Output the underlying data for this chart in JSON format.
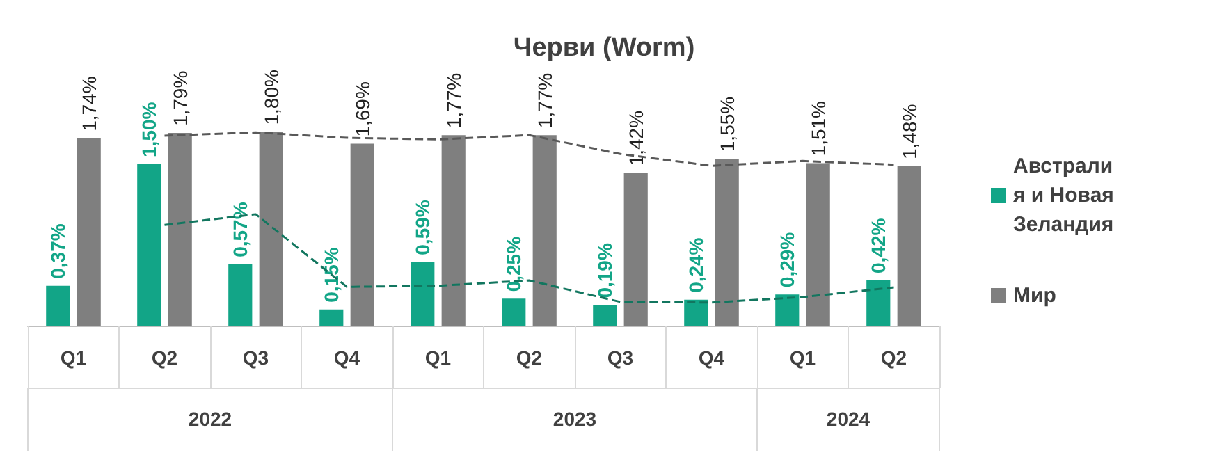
{
  "chart_data": {
    "type": "bar",
    "title": "Черви (Worm)",
    "categories": [
      "Q1",
      "Q2",
      "Q3",
      "Q4",
      "Q1",
      "Q2",
      "Q3",
      "Q4",
      "Q1",
      "Q2"
    ],
    "annotations": [
      "2022",
      "2023",
      "2024"
    ],
    "data_labels": false,
    "legend": "right",
    "series": [
      {
        "name": "Австралия и Новая Зеландия",
        "color": "#12a587",
        "values": [
          0.37,
          1.5,
          0.57,
          0.15,
          0.59,
          0.25,
          0.19,
          0.24,
          0.29,
          0.42
        ],
        "value_labels": [
          "0,37%",
          "1,50%",
          "0,57%",
          "0,15%",
          "0,59%",
          "0,25%",
          "0,19%",
          "0,24%",
          "0,29%",
          "0,42%"
        ]
      },
      {
        "name": "Мир",
        "color": "#7f7f7f",
        "values": [
          1.74,
          1.79,
          1.8,
          1.69,
          1.77,
          1.77,
          1.42,
          1.55,
          1.51,
          1.48
        ],
        "value_labels": [
          "1,74%",
          "1,79%",
          "1,80%",
          "1,69%",
          "1,77%",
          "1,77%",
          "1,42%",
          "1,55%",
          "1,51%",
          "1,48%"
        ]
      },
      {
        "type": "line",
        "line_style": "dashed",
        "marker": "none",
        "color": "#12765f",
        "values": [
          null,
          0.935,
          1.035,
          0.36,
          0.37,
          0.42,
          0.22,
          0.215,
          0.265,
          0.355
        ]
      },
      {
        "type": "line",
        "line_style": "dashed",
        "marker": "none",
        "color": "#595959",
        "values": [
          null,
          1.765,
          1.795,
          1.745,
          1.73,
          1.77,
          1.595,
          1.485,
          1.53,
          1.495
        ]
      }
    ]
  }
}
